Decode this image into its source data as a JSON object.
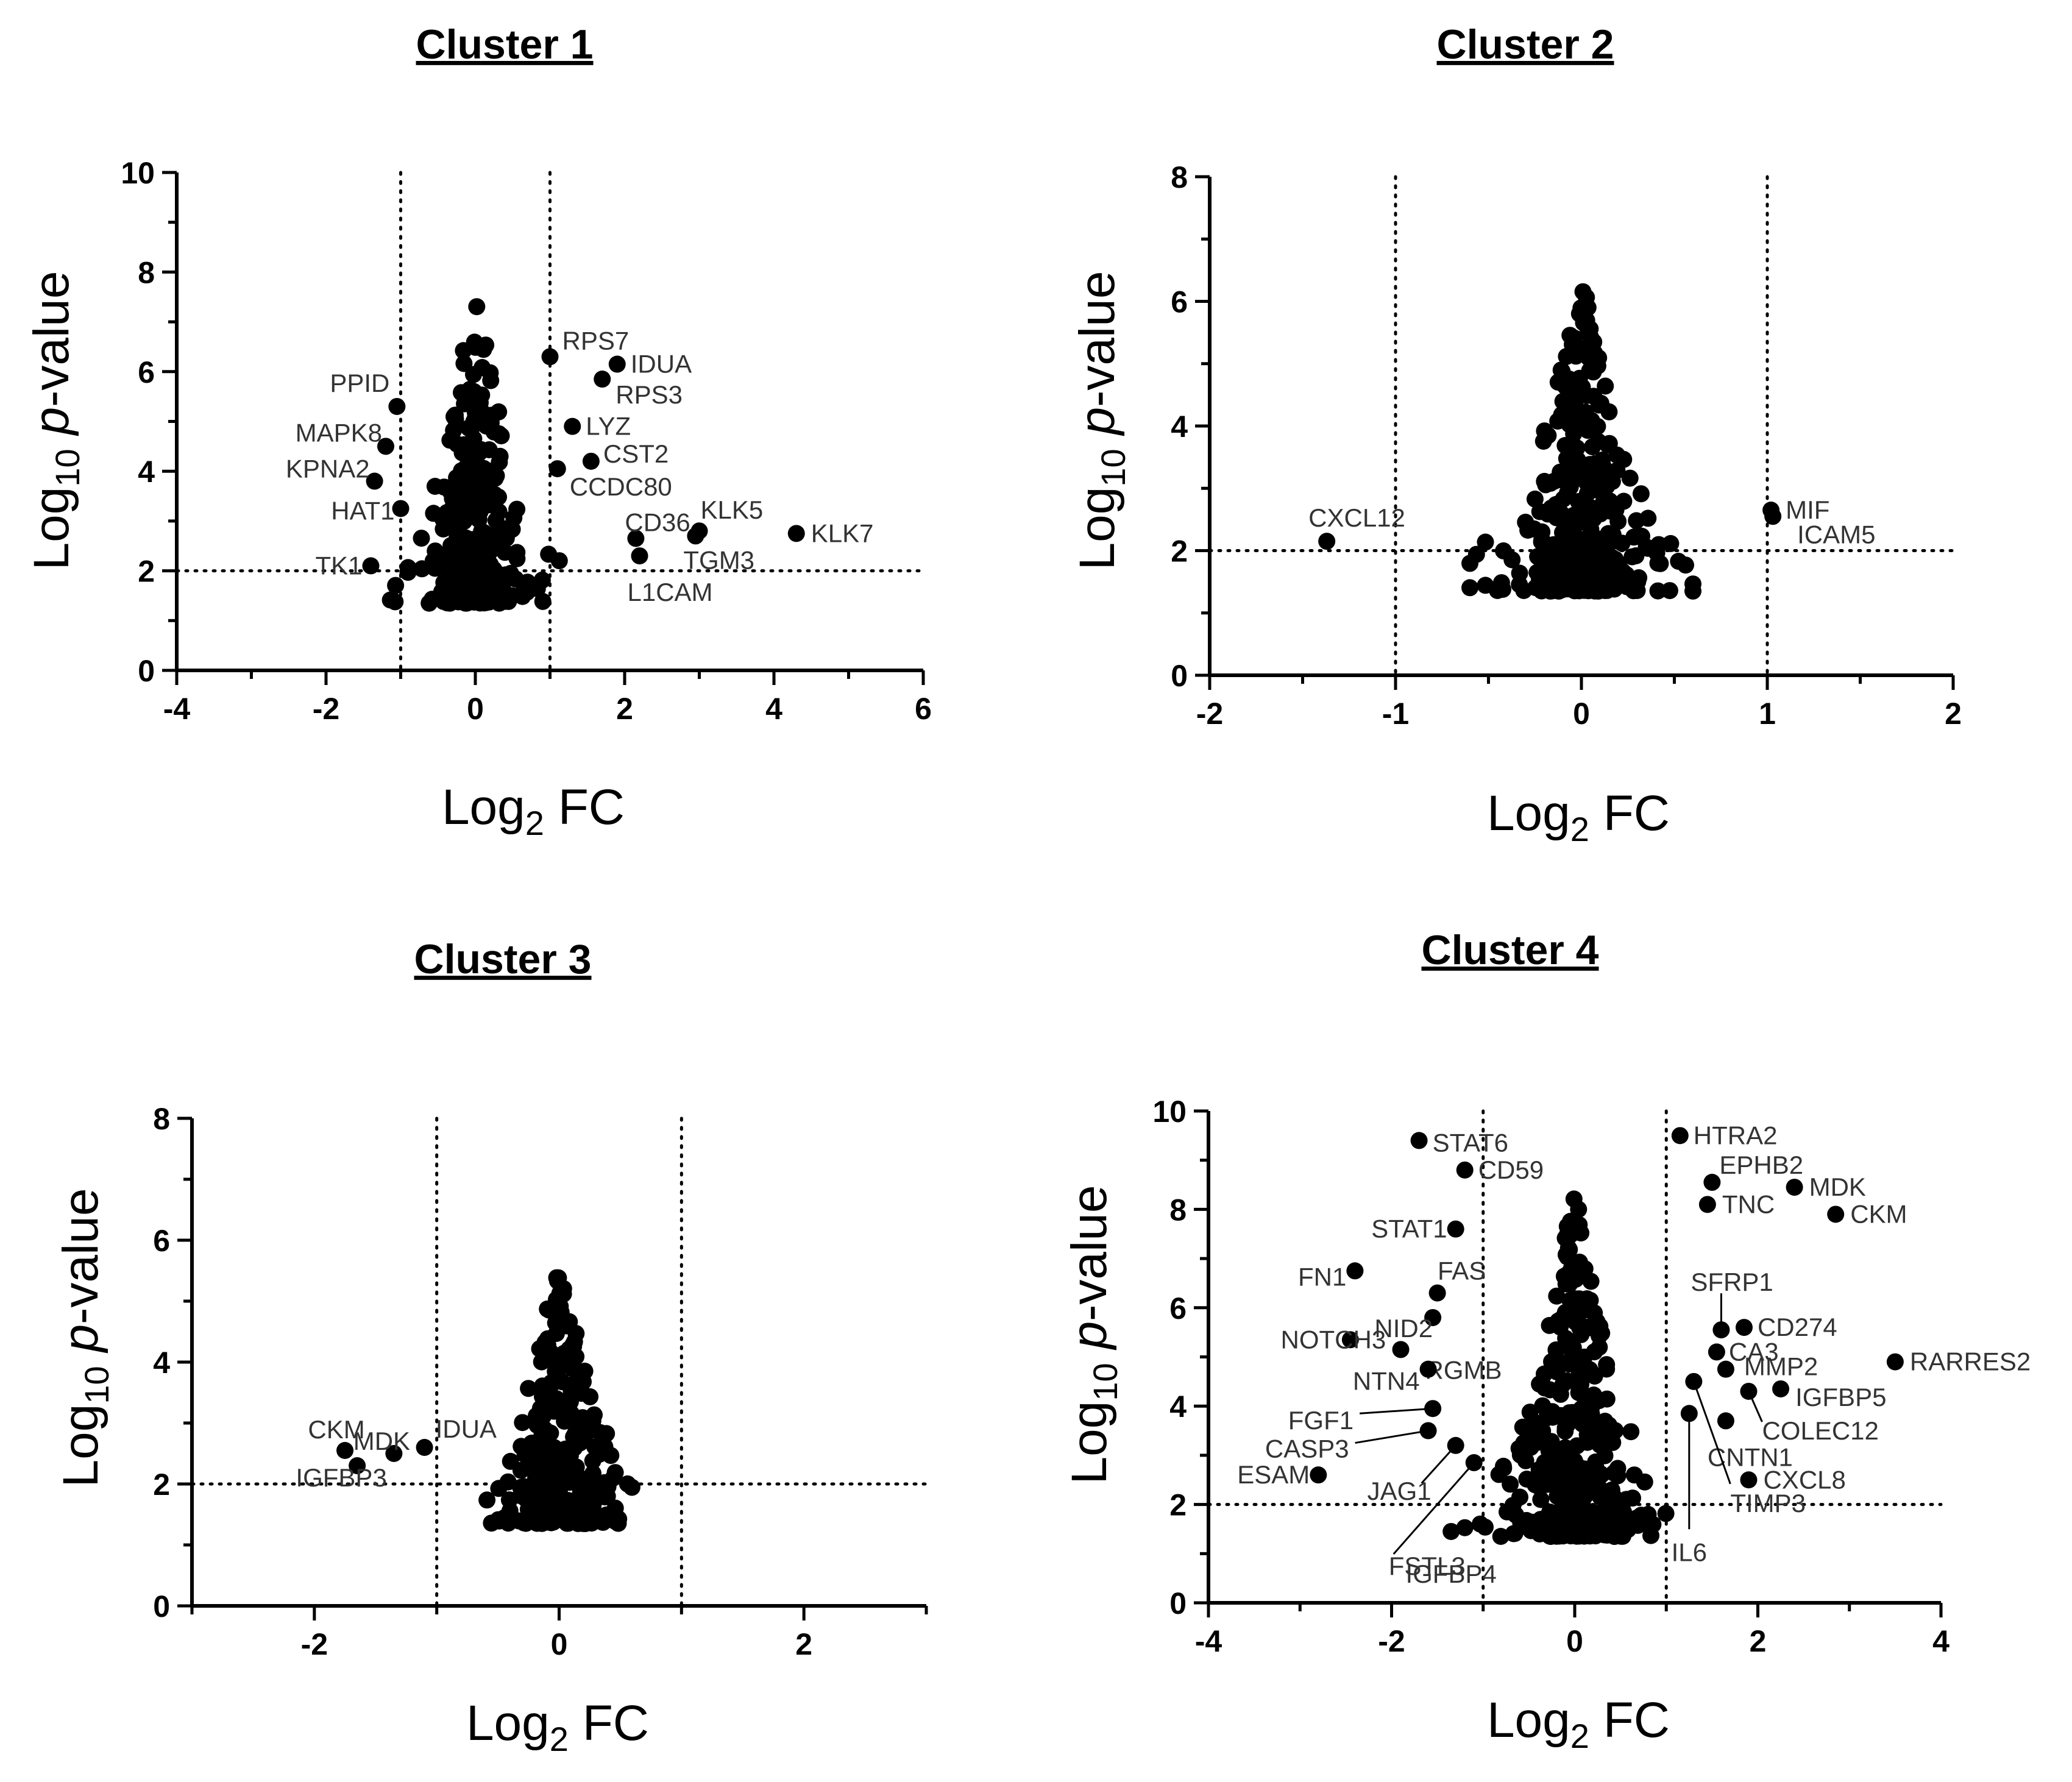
{
  "chart_data": [
    {
      "type": "scatter",
      "title": "Cluster 1",
      "xlabel": "Log2 FC",
      "ylabel": "Log10 p-value",
      "xlim": [
        -4,
        6
      ],
      "ylim": [
        0,
        10
      ],
      "xticks": [
        -4,
        -2,
        0,
        2,
        4,
        6
      ],
      "yticks": [
        0,
        2,
        4,
        6,
        8,
        10
      ],
      "vlines": [
        -1,
        1
      ],
      "hline": 2,
      "labeled_points": [
        {
          "label": "RPS7",
          "x": 1.0,
          "y": 6.3
        },
        {
          "label": "IDUA",
          "x": 1.9,
          "y": 6.15
        },
        {
          "label": "RPS3",
          "x": 1.7,
          "y": 5.85
        },
        {
          "label": "LYZ",
          "x": 1.3,
          "y": 4.9
        },
        {
          "label": "CST2",
          "x": 1.55,
          "y": 4.2
        },
        {
          "label": "CCDC80",
          "x": 1.1,
          "y": 4.05
        },
        {
          "label": "CD36",
          "x": 2.15,
          "y": 2.65
        },
        {
          "label": "KLK5",
          "x": 3.0,
          "y": 2.8
        },
        {
          "label": "KLK7",
          "x": 4.3,
          "y": 2.75
        },
        {
          "label": "TGM3",
          "x": 2.95,
          "y": 2.7
        },
        {
          "label": "L1CAM",
          "x": 2.2,
          "y": 2.3
        },
        {
          "label": "PPID",
          "x": -1.05,
          "y": 5.3
        },
        {
          "label": "MAPK8",
          "x": -1.2,
          "y": 4.5
        },
        {
          "label": "KPNA2",
          "x": -1.35,
          "y": 3.8
        },
        {
          "label": "HAT1",
          "x": -1.0,
          "y": 3.25
        },
        {
          "label": "TK1",
          "x": -1.4,
          "y": 2.1
        }
      ]
    },
    {
      "type": "scatter",
      "title": "Cluster 2",
      "xlabel": "Log2 FC",
      "ylabel": "Log10 p-value",
      "xlim": [
        -2,
        2
      ],
      "ylim": [
        0,
        8
      ],
      "xticks": [
        -2,
        -1,
        0,
        1,
        2
      ],
      "yticks": [
        0,
        2,
        4,
        6,
        8
      ],
      "vlines": [
        -1,
        1
      ],
      "hline": 2,
      "labeled_points": [
        {
          "label": "CXCL12",
          "x": -1.37,
          "y": 2.15
        },
        {
          "label": "MIF",
          "x": 1.02,
          "y": 2.65
        },
        {
          "label": "ICAM5",
          "x": 1.03,
          "y": 2.55
        }
      ]
    },
    {
      "type": "scatter",
      "title": "Cluster 3",
      "xlabel": "Log2 FC",
      "ylabel": "Log10 p-value",
      "xlim": [
        -3,
        3
      ],
      "ylim": [
        0,
        8
      ],
      "xticks": [
        -2,
        0,
        2
      ],
      "yticks": [
        0,
        2,
        4,
        6,
        8
      ],
      "vlines": [
        -1,
        1
      ],
      "hline": 2,
      "labeled_points": [
        {
          "label": "CKM",
          "x": -1.75,
          "y": 2.55
        },
        {
          "label": "IDUA",
          "x": -1.1,
          "y": 2.6
        },
        {
          "label": "MDK",
          "x": -1.35,
          "y": 2.5
        },
        {
          "label": "IGFBP3",
          "x": -1.65,
          "y": 2.3
        }
      ]
    },
    {
      "type": "scatter",
      "title": "Cluster 4",
      "xlabel": "Log2 FC",
      "ylabel": "Log10 p-value",
      "xlim": [
        -4,
        4
      ],
      "ylim": [
        0,
        10
      ],
      "xticks": [
        -4,
        -2,
        0,
        2,
        4
      ],
      "yticks": [
        0,
        2,
        4,
        6,
        8,
        10
      ],
      "vlines": [
        -1,
        1
      ],
      "hline": 2,
      "labeled_points": [
        {
          "label": "STAT6",
          "x": -1.7,
          "y": 9.4
        },
        {
          "label": "CD59",
          "x": -1.2,
          "y": 8.8
        },
        {
          "label": "STAT1",
          "x": -1.3,
          "y": 7.6
        },
        {
          "label": "FN1",
          "x": -2.4,
          "y": 6.75
        },
        {
          "label": "FAS",
          "x": -1.5,
          "y": 6.3
        },
        {
          "label": "NID2",
          "x": -1.55,
          "y": 5.8
        },
        {
          "label": "NOTCH3",
          "x": -2.45,
          "y": 5.35
        },
        {
          "label": "RGMB",
          "x": -1.9,
          "y": 5.15
        },
        {
          "label": "NTN4",
          "x": -1.6,
          "y": 4.75
        },
        {
          "label": "FGF1",
          "x": -1.55,
          "y": 3.95
        },
        {
          "label": "CASP3",
          "x": -1.6,
          "y": 3.5
        },
        {
          "label": "ESAM",
          "x": -2.8,
          "y": 2.6
        },
        {
          "label": "JAG1",
          "x": -1.3,
          "y": 3.2
        },
        {
          "label": "FSTL3",
          "x": -1.1,
          "y": 2.85
        },
        {
          "label": "IGFBP4",
          "x": -1.35,
          "y": 1.45
        },
        {
          "label": "HTRA2",
          "x": 1.15,
          "y": 9.5
        },
        {
          "label": "EPHB2",
          "x": 1.5,
          "y": 8.55
        },
        {
          "label": "MDK",
          "x": 2.4,
          "y": 8.45
        },
        {
          "label": "TNC",
          "x": 1.45,
          "y": 8.1
        },
        {
          "label": "CKM",
          "x": 2.85,
          "y": 7.9
        },
        {
          "label": "SFRP1",
          "x": 1.6,
          "y": 5.55
        },
        {
          "label": "CD274",
          "x": 1.85,
          "y": 5.6
        },
        {
          "label": "CA3",
          "x": 1.55,
          "y": 5.1
        },
        {
          "label": "MMP2",
          "x": 1.65,
          "y": 4.75
        },
        {
          "label": "RARRES2",
          "x": 3.5,
          "y": 4.9
        },
        {
          "label": "IGFBP5",
          "x": 2.25,
          "y": 4.35
        },
        {
          "label": "COLEC12",
          "x": 1.9,
          "y": 4.3
        },
        {
          "label": "CNTN1",
          "x": 1.65,
          "y": 3.7
        },
        {
          "label": "CXCL8",
          "x": 1.9,
          "y": 2.5
        },
        {
          "label": "TIMP3",
          "x": 1.3,
          "y": 4.5
        },
        {
          "label": "IL6",
          "x": 1.25,
          "y": 3.85
        }
      ]
    }
  ]
}
